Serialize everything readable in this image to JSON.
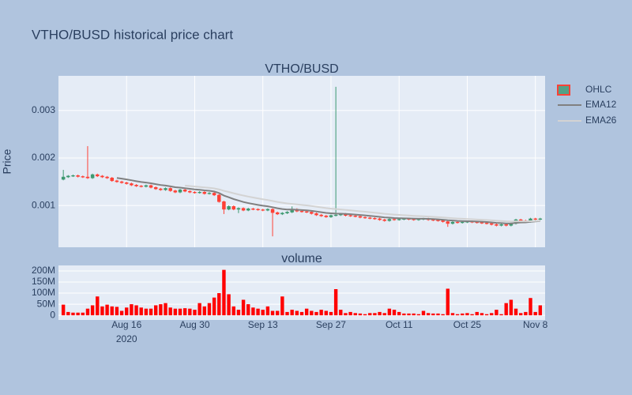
{
  "title": "VTHO/BUSD historical price chart",
  "chart_data": [
    {
      "type": "candlestick",
      "title": "VTHO/BUSD",
      "y_label": "Price",
      "name": "OHLC",
      "increasing_color": "#3d9970",
      "decreasing_color": "#ff4136",
      "xlim": [
        "2020-08-02",
        "2020-11-10"
      ],
      "ylim": [
        0.00012,
        0.00373
      ],
      "yticks": [
        0.001,
        0.002,
        0.003
      ],
      "grid": true,
      "x": [
        "2020-08-03",
        "2020-08-04",
        "2020-08-05",
        "2020-08-06",
        "2020-08-07",
        "2020-08-08",
        "2020-08-09",
        "2020-08-10",
        "2020-08-11",
        "2020-08-12",
        "2020-08-13",
        "2020-08-14",
        "2020-08-15",
        "2020-08-16",
        "2020-08-17",
        "2020-08-18",
        "2020-08-19",
        "2020-08-20",
        "2020-08-21",
        "2020-08-22",
        "2020-08-23",
        "2020-08-24",
        "2020-08-25",
        "2020-08-26",
        "2020-08-27",
        "2020-08-28",
        "2020-08-29",
        "2020-08-30",
        "2020-08-31",
        "2020-09-01",
        "2020-09-02",
        "2020-09-03",
        "2020-09-04",
        "2020-09-05",
        "2020-09-06",
        "2020-09-07",
        "2020-09-08",
        "2020-09-09",
        "2020-09-10",
        "2020-09-11",
        "2020-09-12",
        "2020-09-13",
        "2020-09-14",
        "2020-09-15",
        "2020-09-16",
        "2020-09-17",
        "2020-09-18",
        "2020-09-19",
        "2020-09-20",
        "2020-09-21",
        "2020-09-22",
        "2020-09-23",
        "2020-09-24",
        "2020-09-25",
        "2020-09-26",
        "2020-09-27",
        "2020-09-28",
        "2020-09-29",
        "2020-09-30",
        "2020-10-01",
        "2020-10-02",
        "2020-10-03",
        "2020-10-04",
        "2020-10-05",
        "2020-10-06",
        "2020-10-07",
        "2020-10-08",
        "2020-10-09",
        "2020-10-10",
        "2020-10-11",
        "2020-10-12",
        "2020-10-13",
        "2020-10-14",
        "2020-10-15",
        "2020-10-16",
        "2020-10-17",
        "2020-10-18",
        "2020-10-19",
        "2020-10-20",
        "2020-10-21",
        "2020-10-22",
        "2020-10-23",
        "2020-10-24",
        "2020-10-25",
        "2020-10-26",
        "2020-10-27",
        "2020-10-28",
        "2020-10-29",
        "2020-10-30",
        "2020-10-31",
        "2020-11-01",
        "2020-11-02",
        "2020-11-03",
        "2020-11-04",
        "2020-11-05",
        "2020-11-06",
        "2020-11-07",
        "2020-11-08",
        "2020-11-09"
      ],
      "open": [
        0.00155,
        0.0016,
        0.00162,
        0.00163,
        0.00161,
        0.0016,
        0.00158,
        0.00165,
        0.00162,
        0.0016,
        0.00158,
        0.00152,
        0.0015,
        0.00148,
        0.00146,
        0.00143,
        0.00141,
        0.0014,
        0.00142,
        0.00138,
        0.00135,
        0.00133,
        0.00136,
        0.00131,
        0.00128,
        0.00133,
        0.0013,
        0.00128,
        0.00127,
        0.00128,
        0.00125,
        0.00126,
        0.00122,
        0.00108,
        0.00092,
        0.00098,
        0.00092,
        0.00094,
        0.0009,
        0.00093,
        0.00092,
        0.00091,
        0.0009,
        0.00092,
        0.00085,
        0.00082,
        0.00084,
        0.00086,
        0.00092,
        0.00088,
        0.00087,
        0.00086,
        0.00083,
        0.0008,
        0.00078,
        0.00076,
        0.00079,
        0.0008,
        0.00082,
        0.00079,
        0.00078,
        0.00077,
        0.00075,
        0.00074,
        0.00073,
        0.00072,
        0.0007,
        0.00068,
        0.00071,
        0.0007,
        0.00071,
        0.00072,
        0.00071,
        0.0007,
        0.00071,
        0.00072,
        0.0007,
        0.00069,
        0.00068,
        0.00066,
        0.00062,
        0.00065,
        0.00064,
        0.00065,
        0.00066,
        0.00065,
        0.00064,
        0.00063,
        0.00062,
        0.0006,
        0.00058,
        0.0006,
        0.00058,
        0.00062,
        0.0007,
        0.00068,
        0.00066,
        0.00072,
        0.00071
      ],
      "high": [
        0.00175,
        0.00164,
        0.00165,
        0.00165,
        0.00163,
        0.00225,
        0.00167,
        0.00167,
        0.00164,
        0.00162,
        0.0016,
        0.00154,
        0.00152,
        0.0015,
        0.00148,
        0.00145,
        0.00143,
        0.00144,
        0.00144,
        0.0014,
        0.00137,
        0.00138,
        0.00138,
        0.00133,
        0.00135,
        0.00135,
        0.00132,
        0.0013,
        0.0013,
        0.0013,
        0.00128,
        0.00128,
        0.00124,
        0.0011,
        0.001,
        0.001,
        0.00096,
        0.00096,
        0.00095,
        0.00095,
        0.00094,
        0.00093,
        0.00094,
        0.00094,
        0.00087,
        0.00086,
        0.00088,
        0.00098,
        0.00094,
        0.0009,
        0.00089,
        0.00088,
        0.00085,
        0.00082,
        0.0008,
        0.00081,
        0.0035,
        0.00084,
        0.00084,
        0.00081,
        0.0008,
        0.00079,
        0.00077,
        0.00076,
        0.00075,
        0.00074,
        0.00072,
        0.00073,
        0.00073,
        0.00073,
        0.00074,
        0.00074,
        0.00073,
        0.00073,
        0.00074,
        0.00074,
        0.00072,
        0.00071,
        0.0007,
        0.00068,
        0.00067,
        0.00067,
        0.00067,
        0.00068,
        0.00068,
        0.00067,
        0.00066,
        0.00065,
        0.00064,
        0.00062,
        0.00062,
        0.00062,
        0.00064,
        0.00072,
        0.00072,
        0.0007,
        0.00074,
        0.00074,
        0.00074
      ],
      "low": [
        0.00153,
        0.00158,
        0.0016,
        0.00159,
        0.00158,
        0.00156,
        0.00156,
        0.0016,
        0.00158,
        0.00156,
        0.0015,
        0.00148,
        0.00146,
        0.00144,
        0.00141,
        0.00139,
        0.00138,
        0.00138,
        0.00136,
        0.00133,
        0.00131,
        0.00131,
        0.00129,
        0.00126,
        0.00126,
        0.00128,
        0.00126,
        0.00125,
        0.00125,
        0.00123,
        0.00123,
        0.0012,
        0.00106,
        0.00082,
        0.0009,
        0.0009,
        0.00084,
        0.00088,
        0.00088,
        0.0009,
        0.00089,
        0.00088,
        0.00088,
        0.00035,
        0.0008,
        0.0008,
        0.00082,
        0.00084,
        0.00086,
        0.00085,
        0.00084,
        0.00081,
        0.00078,
        0.00076,
        0.00074,
        0.00074,
        0.00077,
        0.00078,
        0.00077,
        0.00076,
        0.00075,
        0.00073,
        0.00072,
        0.00071,
        0.0007,
        0.00068,
        0.00066,
        0.00066,
        0.00068,
        0.00068,
        0.00069,
        0.00069,
        0.00068,
        0.00068,
        0.00069,
        0.00068,
        0.00067,
        0.00066,
        0.00064,
        0.00055,
        0.0006,
        0.00062,
        0.00062,
        0.00063,
        0.00063,
        0.00062,
        0.00061,
        0.0006,
        0.00058,
        0.00056,
        0.00056,
        0.00056,
        0.00056,
        0.0006,
        0.00066,
        0.00064,
        0.00064,
        0.00069,
        0.00069
      ],
      "close": [
        0.0016,
        0.00162,
        0.00163,
        0.00161,
        0.0016,
        0.00158,
        0.00165,
        0.00162,
        0.0016,
        0.00158,
        0.00152,
        0.0015,
        0.00148,
        0.00146,
        0.00143,
        0.00141,
        0.0014,
        0.00142,
        0.00138,
        0.00135,
        0.00133,
        0.00136,
        0.00131,
        0.00128,
        0.00133,
        0.0013,
        0.00128,
        0.00127,
        0.00128,
        0.00125,
        0.00126,
        0.00122,
        0.00108,
        0.00092,
        0.00098,
        0.00092,
        0.00094,
        0.0009,
        0.00093,
        0.00092,
        0.00091,
        0.0009,
        0.00092,
        0.00085,
        0.00082,
        0.00084,
        0.00086,
        0.00092,
        0.00088,
        0.00087,
        0.00086,
        0.00083,
        0.0008,
        0.00078,
        0.00076,
        0.00079,
        0.0008,
        0.00082,
        0.00079,
        0.00078,
        0.00077,
        0.00075,
        0.00074,
        0.00073,
        0.00072,
        0.0007,
        0.00068,
        0.00071,
        0.0007,
        0.00071,
        0.00072,
        0.00071,
        0.0007,
        0.00071,
        0.00072,
        0.0007,
        0.00069,
        0.00068,
        0.00066,
        0.00062,
        0.00065,
        0.00064,
        0.00065,
        0.00066,
        0.00065,
        0.00064,
        0.00063,
        0.00062,
        0.0006,
        0.00058,
        0.0006,
        0.00058,
        0.00062,
        0.0007,
        0.00068,
        0.00066,
        0.00072,
        0.00071,
        0.00072
      ],
      "series": [
        {
          "name": "EMA12",
          "color": "#808080",
          "values": [
            null,
            null,
            null,
            null,
            null,
            null,
            null,
            null,
            null,
            null,
            null,
            0.00158,
            0.001565,
            0.001549,
            0.001531,
            0.001512,
            0.001495,
            0.001483,
            0.001467,
            0.001449,
            0.001431,
            0.00142,
            0.001403,
            0.001384,
            0.001376,
            0.001364,
            0.001351,
            0.001339,
            0.00133,
            0.001318,
            0.001309,
            0.001295,
            0.001262,
            0.001209,
            0.001174,
            0.001135,
            0.001105,
            0.001073,
            0.001051,
            0.001031,
            0.001012,
            0.000995,
            0.000983,
            0.000963,
            0.000941,
            0.000925,
            0.000915,
            0.000916,
            0.00091,
            0.000904,
            0.000897,
            0.000887,
            0.000874,
            0.000859,
            0.000844,
            0.000836,
            0.00083,
            0.000828,
            0.000822,
            0.000816,
            0.000809,
            0.0008,
            0.000791,
            0.000782,
            0.000772,
            0.000761,
            0.000749,
            0.000743,
            0.000736,
            0.000732,
            0.00073,
            0.000727,
            0.000723,
            0.000721,
            0.000721,
            0.000718,
            0.000714,
            0.000709,
            0.000701,
            0.000689,
            0.000683,
            0.000676,
            0.000672,
            0.00067,
            0.000667,
            0.000663,
            0.000658,
            0.000652,
            0.000644,
            0.000634,
            0.000629,
            0.000622,
            0.000622,
            0.000634,
            0.000641,
            0.000644,
            0.000656,
            0.000664,
            0.000673
          ]
        },
        {
          "name": "EMA26",
          "color": "#d3d3d3",
          "values": [
            null,
            null,
            null,
            null,
            null,
            null,
            null,
            null,
            null,
            null,
            null,
            null,
            null,
            null,
            null,
            null,
            null,
            null,
            null,
            null,
            null,
            null,
            null,
            null,
            null,
            0.00142,
            0.00141,
            0.0014,
            0.001391,
            0.00138,
            0.001371,
            0.00136,
            0.001339,
            0.001308,
            0.001284,
            0.001257,
            0.001233,
            0.001209,
            0.001188,
            0.001168,
            0.001149,
            0.001131,
            0.001115,
            0.001095,
            0.001075,
            0.001058,
            0.001043,
            0.001034,
            0.001023,
            0.001012,
            0.001001,
            0.000988,
            0.000974,
            0.00096,
            0.000945,
            0.000934,
            0.000924,
            0.000916,
            0.000907,
            0.000898,
            0.000888,
            0.000878,
            0.000868,
            0.000858,
            0.000848,
            0.000837,
            0.000825,
            0.000817,
            0.000808,
            0.000801,
            0.000795,
            0.000789,
            0.000782,
            0.000777,
            0.000773,
            0.000767,
            0.000761,
            0.000755,
            0.000748,
            0.000739,
            0.000732,
            0.000725,
            0.00072,
            0.000715,
            0.00071,
            0.000705,
            0.0007,
            0.000694,
            0.000687,
            0.000679,
            0.000673,
            0.000666,
            0.000663,
            0.000666,
            0.000667,
            0.000666,
            0.00067,
            0.000673,
            0.000677
          ]
        }
      ]
    },
    {
      "type": "bar",
      "title": "volume",
      "color": "#ff0000",
      "xlim": [
        "2020-08-02",
        "2020-11-10"
      ],
      "xticks": [
        {
          "value": "2020-08-16",
          "label": "Aug 16"
        },
        {
          "value": "2020-08-30",
          "label": "Aug 30"
        },
        {
          "value": "2020-09-13",
          "label": "Sep 13"
        },
        {
          "value": "2020-09-27",
          "label": "Sep 27"
        },
        {
          "value": "2020-10-11",
          "label": "Oct 11"
        },
        {
          "value": "2020-10-25",
          "label": "Oct 25"
        },
        {
          "value": "2020-11-08",
          "label": "Nov 8"
        }
      ],
      "xtick_year_label": "2020",
      "ylim": [
        -21000000,
        225000000
      ],
      "yticks": [
        0,
        {
          "value": 50000000,
          "label": "50M"
        },
        {
          "value": 100000000,
          "label": "100M"
        },
        {
          "value": 150000000,
          "label": "150M"
        },
        {
          "value": 200000000,
          "label": "200M"
        }
      ],
      "grid": true,
      "x": [
        "2020-08-03",
        "2020-08-04",
        "2020-08-05",
        "2020-08-06",
        "2020-08-07",
        "2020-08-08",
        "2020-08-09",
        "2020-08-10",
        "2020-08-11",
        "2020-08-12",
        "2020-08-13",
        "2020-08-14",
        "2020-08-15",
        "2020-08-16",
        "2020-08-17",
        "2020-08-18",
        "2020-08-19",
        "2020-08-20",
        "2020-08-21",
        "2020-08-22",
        "2020-08-23",
        "2020-08-24",
        "2020-08-25",
        "2020-08-26",
        "2020-08-27",
        "2020-08-28",
        "2020-08-29",
        "2020-08-30",
        "2020-08-31",
        "2020-09-01",
        "2020-09-02",
        "2020-09-03",
        "2020-09-04",
        "2020-09-05",
        "2020-09-06",
        "2020-09-07",
        "2020-09-08",
        "2020-09-09",
        "2020-09-10",
        "2020-09-11",
        "2020-09-12",
        "2020-09-13",
        "2020-09-14",
        "2020-09-15",
        "2020-09-16",
        "2020-09-17",
        "2020-09-18",
        "2020-09-19",
        "2020-09-20",
        "2020-09-21",
        "2020-09-22",
        "2020-09-23",
        "2020-09-24",
        "2020-09-25",
        "2020-09-26",
        "2020-09-27",
        "2020-09-28",
        "2020-09-29",
        "2020-09-30",
        "2020-10-01",
        "2020-10-02",
        "2020-10-03",
        "2020-10-04",
        "2020-10-05",
        "2020-10-06",
        "2020-10-07",
        "2020-10-08",
        "2020-10-09",
        "2020-10-10",
        "2020-10-11",
        "2020-10-12",
        "2020-10-13",
        "2020-10-14",
        "2020-10-15",
        "2020-10-16",
        "2020-10-17",
        "2020-10-18",
        "2020-10-19",
        "2020-10-20",
        "2020-10-21",
        "2020-10-22",
        "2020-10-23",
        "2020-10-24",
        "2020-10-25",
        "2020-10-26",
        "2020-10-27",
        "2020-10-28",
        "2020-10-29",
        "2020-10-30",
        "2020-10-31",
        "2020-11-01",
        "2020-11-02",
        "2020-11-03",
        "2020-11-04",
        "2020-11-05",
        "2020-11-06",
        "2020-11-07",
        "2020-11-08",
        "2020-11-09"
      ],
      "values": [
        48000000,
        15000000,
        12000000,
        12000000,
        12000000,
        30000000,
        45000000,
        85000000,
        40000000,
        48000000,
        40000000,
        38000000,
        20000000,
        35000000,
        50000000,
        45000000,
        35000000,
        30000000,
        30000000,
        45000000,
        50000000,
        55000000,
        35000000,
        30000000,
        30000000,
        32000000,
        30000000,
        25000000,
        55000000,
        40000000,
        55000000,
        80000000,
        100000000,
        205000000,
        95000000,
        40000000,
        25000000,
        70000000,
        50000000,
        35000000,
        30000000,
        25000000,
        40000000,
        20000000,
        20000000,
        85000000,
        15000000,
        25000000,
        20000000,
        15000000,
        30000000,
        20000000,
        15000000,
        25000000,
        20000000,
        15000000,
        118000000,
        25000000,
        10000000,
        15000000,
        10000000,
        8000000,
        5000000,
        10000000,
        10000000,
        15000000,
        10000000,
        30000000,
        25000000,
        15000000,
        8000000,
        8000000,
        8000000,
        5000000,
        20000000,
        10000000,
        8000000,
        8000000,
        5000000,
        120000000,
        10000000,
        5000000,
        8000000,
        10000000,
        5000000,
        15000000,
        10000000,
        5000000,
        10000000,
        25000000,
        5000000,
        55000000,
        70000000,
        30000000,
        10000000,
        15000000,
        78000000,
        15000000,
        45000000
      ]
    }
  ]
}
